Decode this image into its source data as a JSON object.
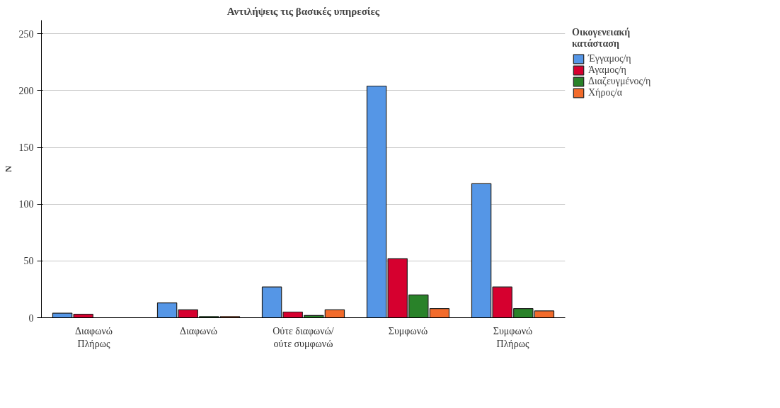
{
  "chart_data": {
    "type": "bar",
    "title": "Αντιλήψεις τις βασικές υπηρεσίες",
    "ylabel": "N",
    "legend_title": "Οικογενειακή κατάσταση",
    "categories": [
      "Διαφωνώ Πλήρως",
      "Διαφωνώ",
      "Ούτε διαφωνώ/ ούτε συμφωνώ",
      "Συμφωνώ",
      "Συμφωνώ Πλήρως"
    ],
    "series": [
      {
        "name": "Έγγαμος/η",
        "color": "#5596e6",
        "values": [
          4,
          13,
          27,
          204,
          118
        ]
      },
      {
        "name": "Άγαμος/η",
        "color": "#d6002f",
        "values": [
          3,
          7,
          5,
          52,
          27
        ]
      },
      {
        "name": "Διαζευγμένος/η",
        "color": "#298229",
        "values": [
          null,
          1,
          2,
          20,
          8
        ]
      },
      {
        "name": "Χήρος/α",
        "color": "#f26b2b",
        "values": [
          null,
          1,
          7,
          8,
          6
        ]
      }
    ],
    "ylim": [
      0,
      262
    ],
    "yticks": [
      0,
      50,
      100,
      150,
      200,
      250
    ],
    "grid": "y",
    "legend": "top right"
  }
}
